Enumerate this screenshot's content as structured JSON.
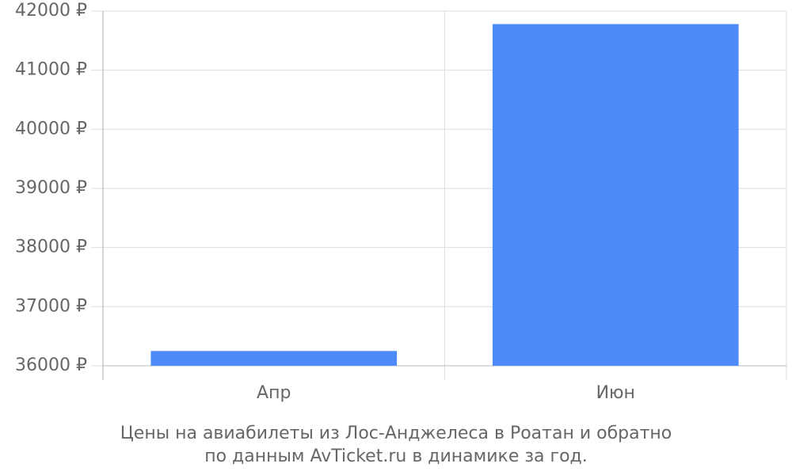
{
  "chart_data": {
    "type": "bar",
    "title": [
      "Цены на авиабилеты из Лос-Анджелеса в Роатан и обратно",
      "по данным AvTicket.ru в динамике за год."
    ],
    "categories": [
      "Апр",
      "Июн"
    ],
    "values": [
      36250,
      41780
    ],
    "color": "#4d8bfa",
    "ylim": [
      36000,
      42000
    ],
    "yticks": [
      {
        "value": 36000,
        "label": "36000 ₽"
      },
      {
        "value": 37000,
        "label": "37000 ₽"
      },
      {
        "value": 38000,
        "label": "38000 ₽"
      },
      {
        "value": 39000,
        "label": "39000 ₽"
      },
      {
        "value": 40000,
        "label": "40000 ₽"
      },
      {
        "value": 41000,
        "label": "41000 ₽"
      },
      {
        "value": 42000,
        "label": "42000 ₽"
      }
    ],
    "grid": true
  }
}
